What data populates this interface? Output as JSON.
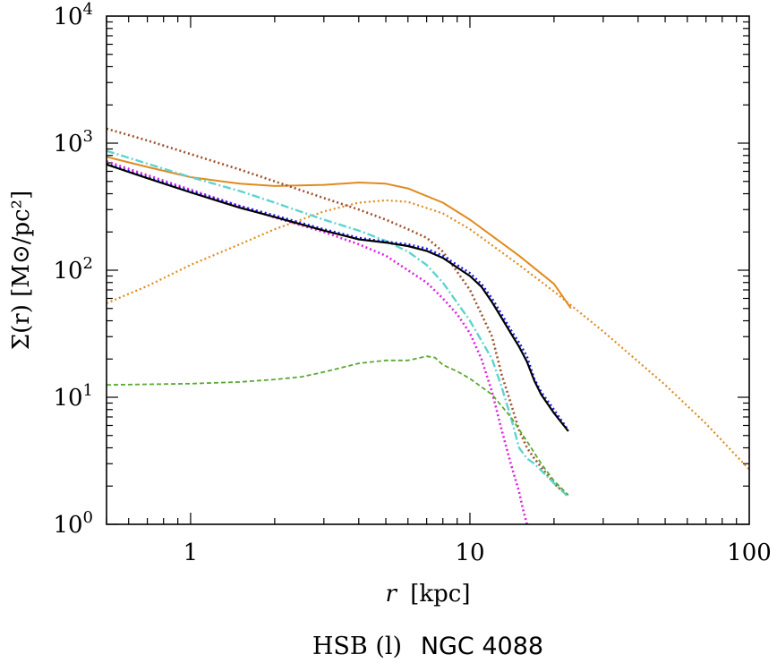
{
  "chart_data": {
    "type": "line",
    "title_prefix": "HSB (l)",
    "title": "NGC 4088",
    "xlabel_var": "r",
    "xlabel_unit": "[kpc]",
    "ylabel": "Σ(r) [M⊙/pc²]",
    "x_scale": "log",
    "y_scale": "log",
    "xlim": [
      0.5,
      100
    ],
    "ylim": [
      1,
      10000
    ],
    "x_ticks": [
      {
        "value": 1,
        "label": "1"
      },
      {
        "value": 10,
        "label": "10"
      },
      {
        "value": 100,
        "label": "100"
      }
    ],
    "y_ticks": [
      {
        "value": 1,
        "base": "10",
        "exp": "0"
      },
      {
        "value": 10,
        "base": "10",
        "exp": "1"
      },
      {
        "value": 100,
        "base": "10",
        "exp": "2"
      },
      {
        "value": 1000,
        "base": "10",
        "exp": "3"
      },
      {
        "value": 10000,
        "base": "10",
        "exp": "4"
      }
    ],
    "grid": false,
    "legend": "none",
    "series": [
      {
        "color": "#e08a1e",
        "style": "dotted",
        "width": 2.2,
        "x": [
          0.5,
          0.7,
          1.0,
          1.5,
          2.0,
          3.0,
          4.0,
          5.0,
          6.0,
          8.0,
          10.0,
          15.0,
          20.0,
          30.0,
          50.0,
          70.0,
          100.0
        ],
        "y": [
          55,
          75,
          110,
          160,
          210,
          290,
          340,
          355,
          345,
          280,
          210,
          110,
          68,
          33,
          12.5,
          6.2,
          2.7
        ]
      },
      {
        "color": "#e08a1e",
        "style": "solid",
        "width": 2.0,
        "x": [
          0.5,
          0.7,
          1.0,
          1.5,
          2.0,
          3.0,
          4.0,
          5.0,
          6.0,
          8.0,
          10.0,
          15.0,
          20.0,
          23.0
        ],
        "y": [
          780,
          650,
          540,
          480,
          460,
          470,
          490,
          480,
          440,
          340,
          250,
          130,
          78,
          50
        ]
      },
      {
        "color": "#a0522d",
        "style": "dotted",
        "width": 2.6,
        "x": [
          0.5,
          0.7,
          1.0,
          1.5,
          2.0,
          3.0,
          4.0,
          5.0,
          6.0,
          7.0,
          8.0,
          10.0,
          12.0,
          13.0,
          14.0,
          15.0,
          16.0,
          17.0,
          20.0,
          22.5
        ],
        "y": [
          1300,
          1050,
          820,
          620,
          500,
          370,
          300,
          250,
          210,
          180,
          140,
          70,
          30,
          15,
          9,
          5.5,
          4,
          3.3,
          2.1,
          1.65
        ]
      },
      {
        "color": "#5fd3d0",
        "style": "dashdot",
        "width": 2.4,
        "x": [
          0.5,
          0.7,
          1.0,
          1.5,
          2.0,
          3.0,
          4.0,
          5.0,
          6.0,
          7.0,
          8.0,
          10.0,
          12.0,
          13.0,
          14.0,
          15.0,
          16.0,
          17.0,
          20.0,
          22.5
        ],
        "y": [
          870,
          690,
          540,
          420,
          340,
          250,
          205,
          170,
          140,
          110,
          80,
          40,
          20,
          12,
          7,
          4,
          3.3,
          3.0,
          2.1,
          1.65
        ]
      },
      {
        "color": "#dd22dd",
        "style": "dotted",
        "width": 2.6,
        "x": [
          0.5,
          0.7,
          1.0,
          1.5,
          2.0,
          3.0,
          4.0,
          5.0,
          6.0,
          7.0,
          8.0,
          9.0,
          10.0,
          11.0,
          12.0,
          13.0,
          14.0,
          15.0,
          15.5,
          16.0
        ],
        "y": [
          720,
          560,
          430,
          320,
          260,
          200,
          160,
          130,
          100,
          80,
          60,
          45,
          32,
          20,
          11,
          5.5,
          3,
          1.8,
          1.3,
          1.0
        ]
      },
      {
        "color": "#5aa832",
        "style": "dashed",
        "width": 1.8,
        "x": [
          0.5,
          1.0,
          1.5,
          2.0,
          2.5,
          3.0,
          4.0,
          5.0,
          6.0,
          7.0,
          7.5,
          8.0,
          9.0,
          10.0,
          12.0,
          14.0,
          16.0,
          18.0,
          20.0,
          22.5
        ],
        "y": [
          12.5,
          12.8,
          13.2,
          13.8,
          14.5,
          15.8,
          18.5,
          19.5,
          19.5,
          21,
          20.5,
          18,
          16,
          14,
          10.5,
          7,
          4.5,
          3,
          2.2,
          1.7
        ]
      },
      {
        "color": "#1a1aff",
        "style": "dotted",
        "width": 2.4,
        "x": [
          0.5,
          0.7,
          1.0,
          1.5,
          2.0,
          3.0,
          4.0,
          5.0,
          6.0,
          7.0,
          8.0,
          9.0,
          10.0,
          11.0,
          12.0,
          13.0,
          14.0,
          15.0,
          16.0,
          17.0,
          18.0,
          20.0,
          22.5
        ],
        "y": [
          690,
          540,
          420,
          320,
          270,
          210,
          180,
          168,
          160,
          148,
          130,
          110,
          95,
          78,
          60,
          45,
          34,
          27,
          21,
          14,
          11,
          8,
          5.5
        ]
      },
      {
        "color": "#000000",
        "style": "solid",
        "width": 2.2,
        "x": [
          0.5,
          0.7,
          1.0,
          1.5,
          2.0,
          3.0,
          4.0,
          5.0,
          6.0,
          7.0,
          8.0,
          9.0,
          10.0,
          11.0,
          12.0,
          13.0,
          14.0,
          15.0,
          16.0,
          17.0,
          18.0,
          20.0,
          22.5
        ],
        "y": [
          680,
          530,
          410,
          310,
          262,
          205,
          175,
          165,
          155,
          142,
          125,
          105,
          90,
          74,
          56,
          42,
          32,
          25,
          19,
          13.5,
          10.5,
          7.5,
          5.4
        ]
      }
    ]
  }
}
